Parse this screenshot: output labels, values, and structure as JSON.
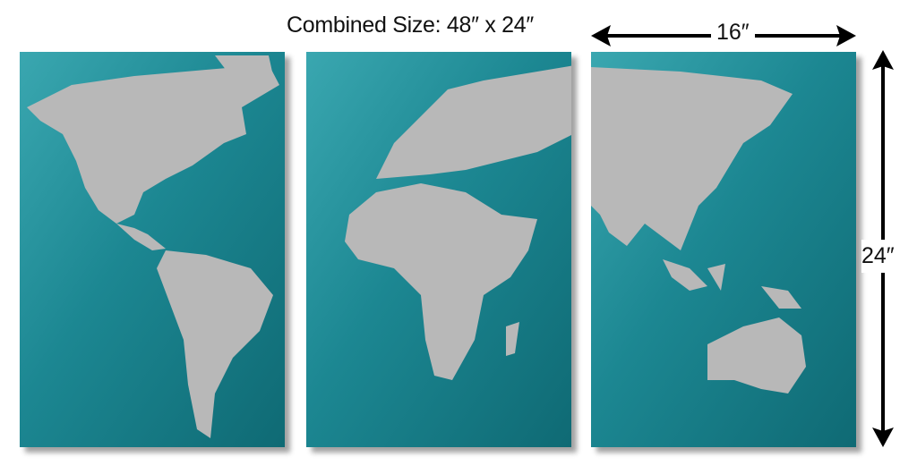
{
  "caption": {
    "combined_size": "Combined Size: 48″ x 24″",
    "panel_width": "16″",
    "panel_height": "24″"
  },
  "product": {
    "panels": 3,
    "colors": {
      "ocean": "#1f8a95",
      "ocean_dark": "#0f5f6a",
      "land": "#b9b9b9",
      "arrow": "#000000"
    }
  }
}
